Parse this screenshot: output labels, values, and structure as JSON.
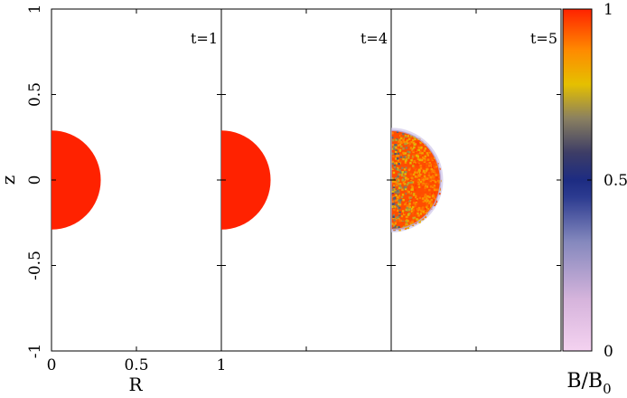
{
  "chart_data": {
    "type": "heatmap",
    "colormap_stops": [
      "#ffffff",
      "#f2c8ec",
      "#7d84b8",
      "#1d2c82",
      "#6c6c6c",
      "#e9c000",
      "#ff2200"
    ],
    "panels": [
      {
        "label": "t=1",
        "shape": "half-disk",
        "radius": 0.29,
        "value": 1.0,
        "noisy": false
      },
      {
        "label": "t=4",
        "shape": "half-disk",
        "radius": 0.29,
        "value": 1.0,
        "noisy": false
      },
      {
        "label": "t=5",
        "shape": "half-disk",
        "radius": 0.29,
        "value": 0.95,
        "noisy": true
      }
    ],
    "xlabel": "R",
    "ylabel": "z",
    "xlim": [
      0,
      1
    ],
    "ylim": [
      -1,
      1
    ],
    "x_ticks": [
      "0",
      "0.5",
      "1"
    ],
    "y_ticks": [
      "-1",
      "-0.5",
      "0",
      "0.5",
      "1"
    ],
    "colorbar": {
      "label_main": "B/B",
      "label_sub": "0",
      "ticks": [
        "0",
        "0.5",
        "1"
      ],
      "range": [
        0,
        1
      ]
    }
  }
}
